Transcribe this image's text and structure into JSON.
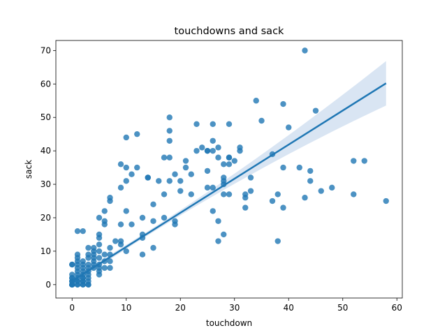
{
  "chart_data": {
    "type": "scatter",
    "title": "touchdowns and sack",
    "xlabel": "touchdown",
    "ylabel": "sack",
    "xlim": [
      -3,
      61
    ],
    "ylim": [
      -4,
      73
    ],
    "xticks": [
      0,
      10,
      20,
      30,
      40,
      50,
      60
    ],
    "yticks": [
      0,
      10,
      20,
      30,
      40,
      50,
      60,
      70
    ],
    "grid": false,
    "colors": {
      "points": "#1f77b4",
      "line": "#1f77b4",
      "band": "#c5d7ec"
    },
    "regression": {
      "x": [
        0,
        58
      ],
      "y": [
        1.1,
        60.2
      ],
      "ci_at_xmax": [
        54.0,
        67.3
      ]
    },
    "points": [
      [
        0,
        0
      ],
      [
        0,
        0
      ],
      [
        0,
        0
      ],
      [
        0,
        0
      ],
      [
        0,
        0
      ],
      [
        0,
        1
      ],
      [
        0,
        1
      ],
      [
        0,
        2
      ],
      [
        0,
        3
      ],
      [
        0,
        6
      ],
      [
        0,
        6
      ],
      [
        0,
        2
      ],
      [
        0,
        1
      ],
      [
        0,
        0
      ],
      [
        1,
        0
      ],
      [
        1,
        1
      ],
      [
        1,
        2
      ],
      [
        1,
        3
      ],
      [
        1,
        4
      ],
      [
        1,
        5
      ],
      [
        1,
        6
      ],
      [
        1,
        7
      ],
      [
        1,
        8
      ],
      [
        1,
        9
      ],
      [
        1,
        16
      ],
      [
        1,
        1
      ],
      [
        1,
        0
      ],
      [
        2,
        0
      ],
      [
        2,
        1
      ],
      [
        2,
        2
      ],
      [
        2,
        3
      ],
      [
        2,
        4
      ],
      [
        2,
        5
      ],
      [
        2,
        6
      ],
      [
        2,
        7
      ],
      [
        2,
        16
      ],
      [
        2,
        0
      ],
      [
        2,
        1
      ],
      [
        2,
        2
      ],
      [
        3,
        0
      ],
      [
        3,
        1
      ],
      [
        3,
        2
      ],
      [
        3,
        3
      ],
      [
        3,
        4
      ],
      [
        3,
        5
      ],
      [
        3,
        6
      ],
      [
        3,
        8
      ],
      [
        3,
        9
      ],
      [
        3,
        11
      ],
      [
        3,
        0
      ],
      [
        4,
        5
      ],
      [
        4,
        6
      ],
      [
        4,
        7
      ],
      [
        4,
        8
      ],
      [
        4,
        9
      ],
      [
        4,
        10
      ],
      [
        4,
        11
      ],
      [
        5,
        3
      ],
      [
        5,
        4
      ],
      [
        5,
        5
      ],
      [
        5,
        6
      ],
      [
        5,
        8
      ],
      [
        5,
        10
      ],
      [
        5,
        12
      ],
      [
        5,
        14
      ],
      [
        5,
        15
      ],
      [
        5,
        20
      ],
      [
        6,
        5
      ],
      [
        6,
        7
      ],
      [
        6,
        9
      ],
      [
        6,
        18
      ],
      [
        6,
        19
      ],
      [
        6,
        22
      ],
      [
        7,
        5
      ],
      [
        7,
        7
      ],
      [
        7,
        9
      ],
      [
        7,
        11
      ],
      [
        7,
        25
      ],
      [
        7,
        26
      ],
      [
        8,
        13
      ],
      [
        9,
        12
      ],
      [
        9,
        13
      ],
      [
        9,
        18
      ],
      [
        9,
        29
      ],
      [
        9,
        36
      ],
      [
        10,
        10
      ],
      [
        10,
        22
      ],
      [
        10,
        31
      ],
      [
        10,
        35
      ],
      [
        10,
        44
      ],
      [
        11,
        18
      ],
      [
        11,
        33
      ],
      [
        12,
        35
      ],
      [
        12,
        45
      ],
      [
        13,
        9
      ],
      [
        13,
        14
      ],
      [
        13,
        15
      ],
      [
        13,
        20
      ],
      [
        14,
        32
      ],
      [
        14,
        32
      ],
      [
        15,
        11
      ],
      [
        15,
        19
      ],
      [
        15,
        24
      ],
      [
        16,
        31
      ],
      [
        17,
        20
      ],
      [
        17,
        27
      ],
      [
        17,
        38
      ],
      [
        18,
        31
      ],
      [
        18,
        38
      ],
      [
        18,
        43
      ],
      [
        18,
        46
      ],
      [
        18,
        50
      ],
      [
        19,
        18
      ],
      [
        19,
        19
      ],
      [
        19,
        33
      ],
      [
        20,
        28
      ],
      [
        20,
        31
      ],
      [
        21,
        35
      ],
      [
        21,
        37
      ],
      [
        22,
        27
      ],
      [
        22,
        33
      ],
      [
        23,
        40
      ],
      [
        23,
        48
      ],
      [
        24,
        41
      ],
      [
        25,
        29
      ],
      [
        25,
        34
      ],
      [
        25,
        40
      ],
      [
        25,
        40
      ],
      [
        26,
        22
      ],
      [
        26,
        29
      ],
      [
        26,
        40
      ],
      [
        26,
        43
      ],
      [
        26,
        48
      ],
      [
        27,
        13
      ],
      [
        27,
        19
      ],
      [
        27,
        38
      ],
      [
        27,
        41
      ],
      [
        28,
        15
      ],
      [
        28,
        27
      ],
      [
        28,
        30
      ],
      [
        28,
        31
      ],
      [
        28,
        32
      ],
      [
        28,
        36
      ],
      [
        29,
        27
      ],
      [
        29,
        36
      ],
      [
        29,
        38
      ],
      [
        29,
        38
      ],
      [
        29,
        48
      ],
      [
        30,
        37
      ],
      [
        31,
        40
      ],
      [
        31,
        41
      ],
      [
        32,
        23
      ],
      [
        32,
        26
      ],
      [
        32,
        27
      ],
      [
        33,
        28
      ],
      [
        33,
        32
      ],
      [
        34,
        55
      ],
      [
        35,
        49
      ],
      [
        37,
        25
      ],
      [
        37,
        39
      ],
      [
        38,
        13
      ],
      [
        38,
        27
      ],
      [
        39,
        23
      ],
      [
        39,
        35
      ],
      [
        39,
        54
      ],
      [
        40,
        47
      ],
      [
        42,
        35
      ],
      [
        43,
        26
      ],
      [
        43,
        70
      ],
      [
        44,
        31
      ],
      [
        44,
        34
      ],
      [
        45,
        52
      ],
      [
        46,
        28
      ],
      [
        48,
        29
      ],
      [
        52,
        27
      ],
      [
        52,
        37
      ],
      [
        54,
        37
      ],
      [
        58,
        25
      ]
    ]
  }
}
